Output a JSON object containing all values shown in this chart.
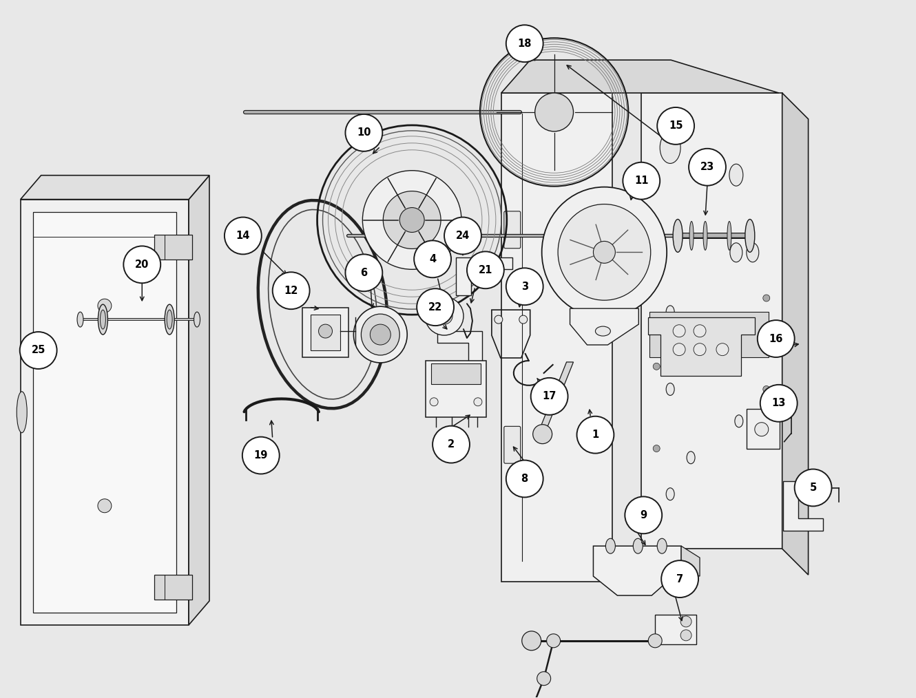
{
  "background_color": "#e8e8e8",
  "line_color": "#1a1a1a",
  "fig_width": 13.3,
  "fig_height": 10.14,
  "dpi": 100,
  "lw": 1.2,
  "label_r": 0.27
}
